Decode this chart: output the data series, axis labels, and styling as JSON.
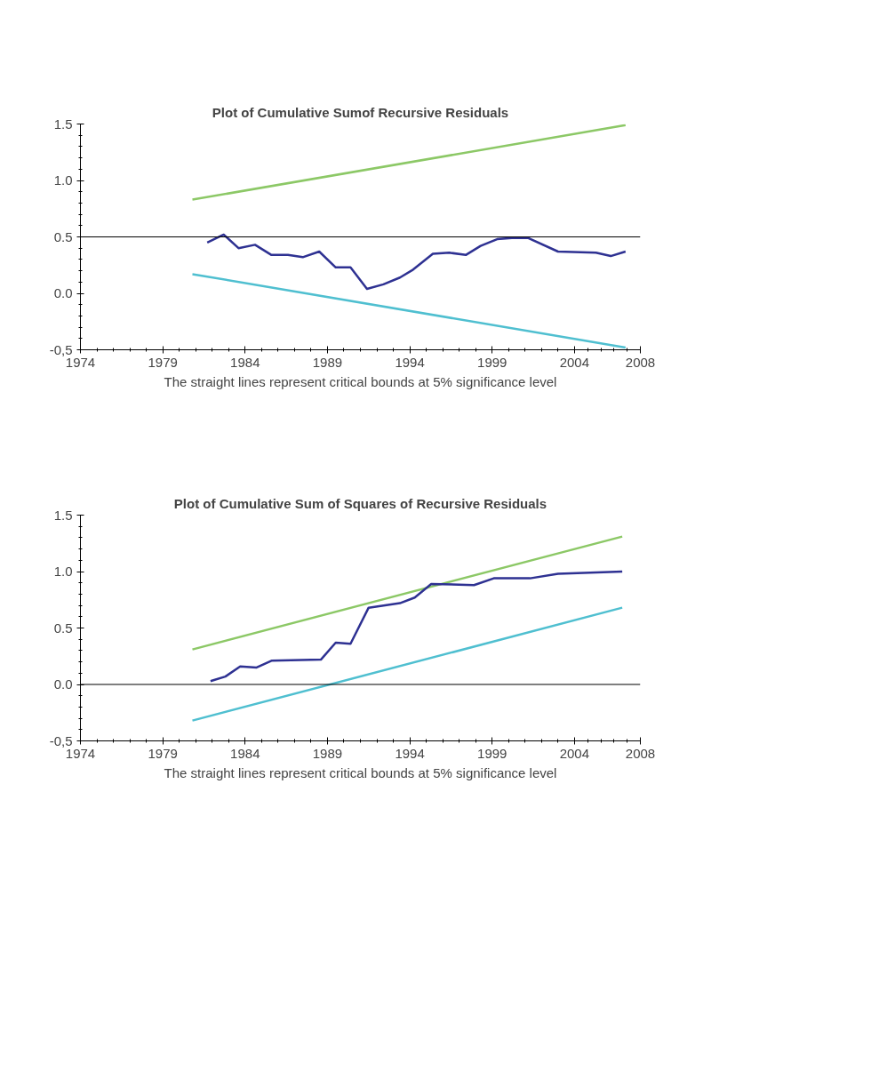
{
  "chart_data": [
    {
      "type": "line",
      "title": "Plot of Cumulative Sumof Recursive Residuals",
      "xlabel": "The straight lines represent critical bounds at 5% significance level",
      "xlim": [
        1974,
        2008
      ],
      "xticks": [
        1974,
        1979,
        1984,
        1989,
        1994,
        1999,
        2004,
        2008
      ],
      "ylim": [
        -0.5,
        1.5
      ],
      "yticks": [
        {
          "value": -0.5,
          "label": "-0,5"
        },
        {
          "value": 0,
          "label": "0.0"
        },
        {
          "value": 0.5,
          "label": "0.5"
        },
        {
          "value": 1,
          "label": "1.0"
        },
        {
          "value": 1.5,
          "label": "1.5"
        }
      ],
      "grid": false,
      "ref_lines": [
        {
          "axis": "y",
          "value": 0.5,
          "color": "#000000"
        }
      ],
      "series": [
        {
          "color": "#8cc866",
          "x": [
            1980.8,
            2007.1
          ],
          "values": [
            0.83,
            1.49
          ]
        },
        {
          "color": "#4fbfd0",
          "x": [
            1980.8,
            2007.1
          ],
          "values": [
            0.17,
            -0.48
          ]
        },
        {
          "color": "#2e3192",
          "x": [
            1981.7,
            1982.7,
            1983.6,
            1984.6,
            1985.6,
            1986.6,
            1987.5,
            1988.5,
            1989.5,
            1990.4,
            1991.4,
            1992.4,
            1993.4,
            1994.2,
            1995.4,
            1996.4,
            1997.4,
            1998.3,
            1999.3,
            2000.2,
            2001.2,
            2003.0,
            2005.3,
            2006.2,
            2007.1
          ],
          "values": [
            0.45,
            0.52,
            0.4,
            0.43,
            0.34,
            0.34,
            0.32,
            0.37,
            0.23,
            0.23,
            0.04,
            0.08,
            0.14,
            0.21,
            0.35,
            0.36,
            0.34,
            0.42,
            0.48,
            0.49,
            0.49,
            0.37,
            0.36,
            0.33,
            0.37
          ]
        }
      ]
    },
    {
      "type": "line",
      "title": "Plot of Cumulative Sum of Squares of Recursive Residuals",
      "xlabel": "The straight lines represent critical bounds at 5% significance level",
      "xlim": [
        1974,
        2008
      ],
      "xticks": [
        1974,
        1979,
        1984,
        1989,
        1994,
        1999,
        2004,
        2008
      ],
      "ylim": [
        -0.5,
        1.5
      ],
      "yticks": [
        {
          "value": -0.5,
          "label": "-0,5"
        },
        {
          "value": 0,
          "label": "0.0"
        },
        {
          "value": 0.5,
          "label": "0.5"
        },
        {
          "value": 1,
          "label": "1.0"
        },
        {
          "value": 1.5,
          "label": "1.5"
        }
      ],
      "grid": false,
      "ref_lines": [
        {
          "axis": "y",
          "value": 0,
          "color": "#000000"
        }
      ],
      "series": [
        {
          "color": "#8cc866",
          "x": [
            1980.8,
            2006.9
          ],
          "values": [
            0.31,
            1.31
          ]
        },
        {
          "color": "#4fbfd0",
          "x": [
            1980.8,
            2006.9
          ],
          "values": [
            -0.32,
            0.68
          ]
        },
        {
          "color": "#2e3192",
          "x": [
            1981.9,
            1982.8,
            1983.7,
            1984.7,
            1985.6,
            1988.6,
            1989.5,
            1990.4,
            1991.5,
            1993.4,
            1994.3,
            1995.3,
            1997.9,
            1999.1,
            2001.3,
            2003.0,
            2006.9
          ],
          "values": [
            0.03,
            0.07,
            0.16,
            0.15,
            0.21,
            0.22,
            0.37,
            0.36,
            0.68,
            0.72,
            0.77,
            0.89,
            0.88,
            0.94,
            0.94,
            0.98,
            1.0
          ]
        }
      ]
    }
  ]
}
